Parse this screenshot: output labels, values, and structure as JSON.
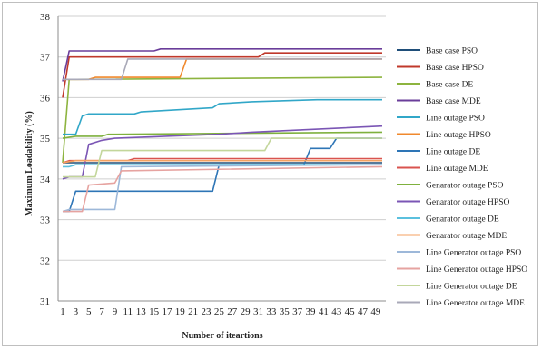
{
  "chart_data": {
    "type": "line",
    "title": "",
    "xlabel": "Number of iteartions",
    "ylabel": "Maximum Loadability (%)",
    "ylim": [
      31,
      38
    ],
    "yticks": [
      31,
      32,
      33,
      34,
      35,
      36,
      37,
      38
    ],
    "xlim": [
      1,
      50
    ],
    "xticks": [
      1,
      3,
      5,
      7,
      9,
      11,
      13,
      15,
      17,
      19,
      21,
      23,
      25,
      27,
      29,
      31,
      33,
      35,
      37,
      39,
      41,
      43,
      45,
      47,
      49
    ],
    "grid": "horizontal",
    "legend_position": "right",
    "series": [
      {
        "name": "Base case PSO",
        "color": "#1f4e79",
        "points": [
          [
            1,
            34.4
          ],
          [
            2,
            34.4
          ],
          [
            50,
            34.4
          ]
        ]
      },
      {
        "name": "Base case HPSO",
        "color": "#c0392b",
        "points": [
          [
            1,
            36.0
          ],
          [
            2,
            37.0
          ],
          [
            31,
            37.0
          ],
          [
            32,
            37.1
          ],
          [
            50,
            37.1
          ]
        ]
      },
      {
        "name": "Base case DE",
        "color": "#8db43f",
        "points": [
          [
            1,
            34.4
          ],
          [
            2,
            36.45
          ],
          [
            3,
            36.45
          ],
          [
            50,
            36.5
          ]
        ]
      },
      {
        "name": "Base case MDE",
        "color": "#6a3d9a",
        "points": [
          [
            1,
            36.4
          ],
          [
            2,
            37.15
          ],
          [
            15,
            37.15
          ],
          [
            16,
            37.2
          ],
          [
            50,
            37.2
          ]
        ]
      },
      {
        "name": "Line outage PSO",
        "color": "#31a7c8",
        "points": [
          [
            1,
            35.1
          ],
          [
            3,
            35.1
          ],
          [
            4,
            35.55
          ],
          [
            5,
            35.6
          ],
          [
            12,
            35.6
          ],
          [
            13,
            35.65
          ],
          [
            24,
            35.75
          ],
          [
            25,
            35.85
          ],
          [
            30,
            35.9
          ],
          [
            40,
            35.95
          ],
          [
            50,
            35.95
          ]
        ]
      },
      {
        "name": "Line outage HPSO",
        "color": "#f0892d",
        "points": [
          [
            1,
            36.45
          ],
          [
            5,
            36.45
          ],
          [
            6,
            36.5
          ],
          [
            19,
            36.5
          ],
          [
            20,
            36.95
          ],
          [
            50,
            36.95
          ]
        ]
      },
      {
        "name": "Line outage DE",
        "color": "#2e75b6",
        "points": [
          [
            1,
            33.2
          ],
          [
            2,
            33.2
          ],
          [
            3,
            33.7
          ],
          [
            24,
            33.7
          ],
          [
            25,
            34.35
          ],
          [
            38,
            34.35
          ],
          [
            39,
            34.75
          ],
          [
            42,
            34.75
          ],
          [
            43,
            35.0
          ],
          [
            50,
            35.0
          ]
        ]
      },
      {
        "name": "Line outage MDE",
        "color": "#d9534f",
        "points": [
          [
            1,
            34.4
          ],
          [
            2,
            34.45
          ],
          [
            11,
            34.45
          ],
          [
            12,
            34.5
          ],
          [
            50,
            34.5
          ]
        ]
      },
      {
        "name": "Genarator outage PSO",
        "color": "#7fb13e",
        "points": [
          [
            1,
            35.0
          ],
          [
            3,
            35.05
          ],
          [
            7,
            35.05
          ],
          [
            8,
            35.1
          ],
          [
            50,
            35.15
          ]
        ]
      },
      {
        "name": "Genarator outage HPSO",
        "color": "#7b56b5",
        "points": [
          [
            1,
            34.0
          ],
          [
            2,
            34.05
          ],
          [
            4,
            34.05
          ],
          [
            5,
            34.85
          ],
          [
            7,
            34.95
          ],
          [
            9,
            35.0
          ],
          [
            25,
            35.1
          ],
          [
            30,
            35.15
          ],
          [
            50,
            35.3
          ]
        ]
      },
      {
        "name": "Genarator outage DE",
        "color": "#5bc0de",
        "points": [
          [
            1,
            34.3
          ],
          [
            2,
            34.3
          ],
          [
            3,
            34.35
          ],
          [
            50,
            34.35
          ]
        ]
      },
      {
        "name": "Genarator outage MDE",
        "color": "#f4a261",
        "points": [
          [
            1,
            34.4
          ],
          [
            3,
            34.45
          ],
          [
            50,
            34.45
          ]
        ]
      },
      {
        "name": "Line Generator outage PSO",
        "color": "#9db8d9",
        "points": [
          [
            1,
            33.2
          ],
          [
            2,
            33.25
          ],
          [
            9,
            33.25
          ],
          [
            10,
            34.3
          ],
          [
            50,
            34.35
          ]
        ]
      },
      {
        "name": "Line Generator outage HPSO",
        "color": "#e6a3a0",
        "points": [
          [
            1,
            33.2
          ],
          [
            4,
            33.2
          ],
          [
            5,
            33.85
          ],
          [
            9,
            33.9
          ],
          [
            10,
            34.2
          ],
          [
            50,
            34.3
          ]
        ]
      },
      {
        "name": "Line Generator outage DE",
        "color": "#c3d69b",
        "points": [
          [
            1,
            34.05
          ],
          [
            6,
            34.05
          ],
          [
            7,
            34.7
          ],
          [
            32,
            34.7
          ],
          [
            33,
            35.0
          ],
          [
            50,
            35.0
          ]
        ]
      },
      {
        "name": "Line Generator outage MDE",
        "color": "#a9a9b8",
        "points": [
          [
            1,
            36.45
          ],
          [
            10,
            36.45
          ],
          [
            11,
            36.95
          ],
          [
            50,
            36.95
          ]
        ]
      }
    ]
  }
}
